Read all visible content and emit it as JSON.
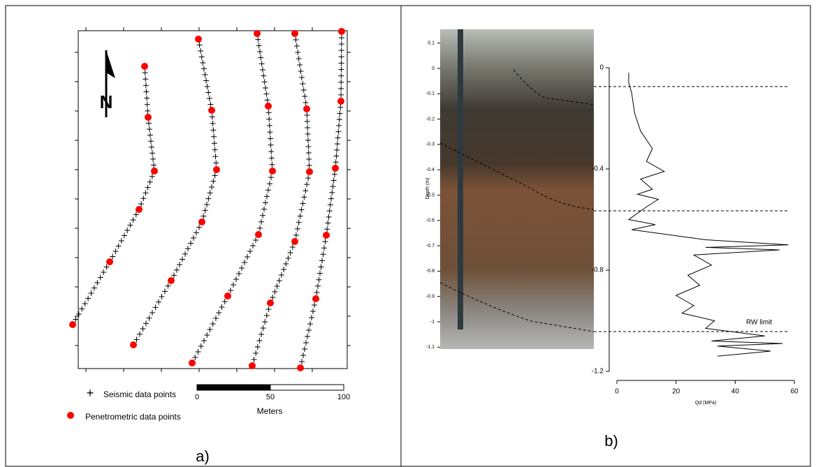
{
  "panel_a": {
    "label": "a)",
    "north": "N",
    "legend": [
      "Seismic data points",
      "Penetrometric data points"
    ],
    "scale_bar": {
      "ticks": [
        0,
        50,
        100
      ],
      "unit": "Meters"
    }
  },
  "panel_b": {
    "label": "b)",
    "photo": {
      "axis_label": "Depth (m)",
      "yticks": [
        0.1,
        0,
        -0.1,
        -0.2,
        -0.3,
        -0.4,
        -0.5,
        -0.6,
        -0.7,
        -0.8,
        -0.9,
        -1,
        -1.1
      ]
    },
    "chart_data": {
      "type": "line",
      "x_label": "Qd (MPa)",
      "annotation": "RW limit",
      "xlim": [
        0,
        60
      ],
      "xticks": [
        0,
        20,
        40,
        60
      ],
      "ylim": [
        -1.2,
        0
      ],
      "yticks": [
        0,
        -0.4,
        -0.8,
        -1.2
      ],
      "series": [
        {
          "color": "#000000",
          "x": [
            4,
            4,
            5,
            6,
            8,
            12,
            10,
            16,
            8,
            12,
            7,
            14,
            10,
            4,
            13,
            5,
            30,
            58,
            30,
            55,
            26,
            32,
            24,
            28,
            20,
            26,
            22,
            33,
            30,
            50,
            32,
            56,
            34,
            52,
            34
          ],
          "values": [
            -0.02,
            -0.06,
            -0.1,
            -0.18,
            -0.25,
            -0.32,
            -0.37,
            -0.41,
            -0.44,
            -0.48,
            -0.5,
            -0.52,
            -0.55,
            -0.6,
            -0.62,
            -0.64,
            -0.68,
            -0.7,
            -0.71,
            -0.72,
            -0.74,
            -0.78,
            -0.82,
            -0.86,
            -0.9,
            -0.94,
            -0.97,
            -1.0,
            -1.03,
            -1.06,
            -1.08,
            -1.09,
            -1.1,
            -1.12,
            -1.14
          ]
        }
      ]
    }
  }
}
